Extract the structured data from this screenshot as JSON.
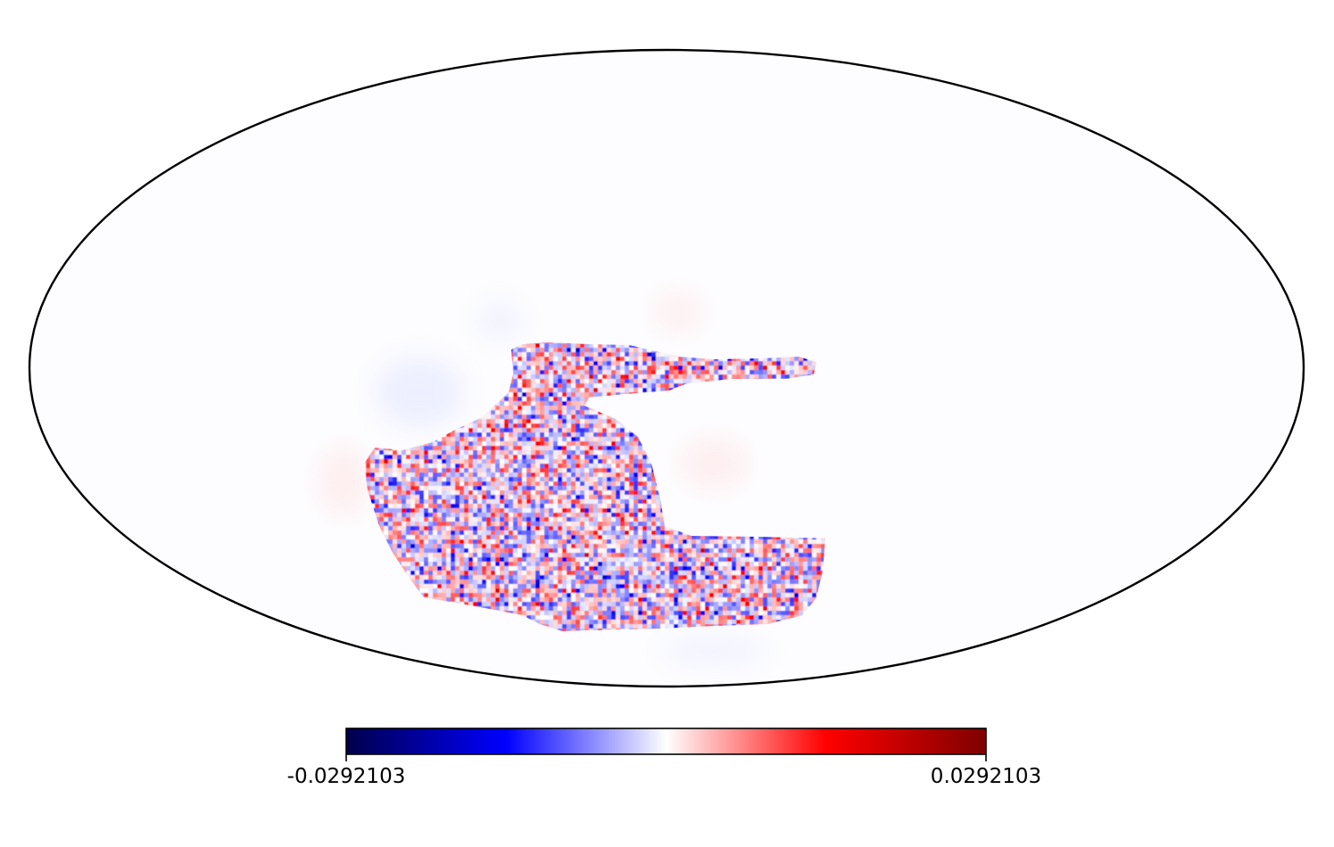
{
  "map": {
    "projection": "mollweide",
    "colormap": "seismic",
    "colormap_stops": [
      "#00004c",
      "#0000ff",
      "#ffffff",
      "#ff0000",
      "#7f0000"
    ],
    "background_color": "#ffffff",
    "outline_color": "#000000",
    "masked_region": "noisy patch in lower-central sky with a thin strip extending to the right"
  },
  "colorbar": {
    "min_label": "-0.0292103",
    "max_label": "0.0292103",
    "min_value": -0.0292103,
    "max_value": 0.0292103,
    "orientation": "horizontal"
  }
}
